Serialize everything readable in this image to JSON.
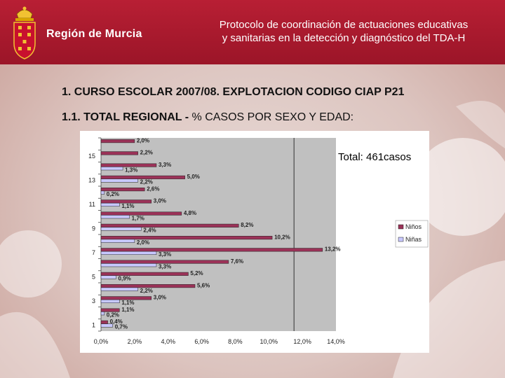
{
  "header": {
    "brand": "Región de Murcia",
    "title_line1": "Protocolo de coordinación de actuaciones educativas",
    "title_line2": "y sanitarias en la detección y diagnóstico del TDA-H"
  },
  "section": {
    "heading1": "1. CURSO ESCOLAR 2007/08. EXPLOTACION CODIGO CIAP P21",
    "heading2_bold": "1.1. TOTAL REGIONAL - ",
    "heading2_rest": "% CASOS POR SEXO Y EDAD:"
  },
  "colors": {
    "header_red": "#b01c30",
    "ninos": "#9b3258",
    "ninas": "#c8c8ff",
    "plot_bg": "#c0c0c0"
  },
  "chart_data": {
    "type": "bar",
    "orientation": "horizontal",
    "annotation": "Total: 461casos",
    "ylabels": [
      "15",
      "13",
      "11",
      "9",
      "7",
      "5",
      "3",
      "1"
    ],
    "xticks": [
      "0,0%",
      "2,0%",
      "4,0%",
      "6,0%",
      "8,0%",
      "10,0%",
      "12,0%",
      "14,0%"
    ],
    "xlim": [
      0,
      14
    ],
    "reference_line_x": 11.5,
    "legend_position": "right",
    "series": [
      {
        "name": "Niños",
        "color": "#9b3258"
      },
      {
        "name": "Niñas",
        "color": "#c8c8ff"
      }
    ],
    "rows": [
      {
        "ninos": 2.0,
        "ninos_label": "2,0%",
        "ninas": null,
        "ninas_label": ""
      },
      {
        "ninos": 2.2,
        "ninos_label": "2,2%",
        "ninas": null,
        "ninas_label": ""
      },
      {
        "ninos": 3.3,
        "ninos_label": "3,3%",
        "ninas": 1.3,
        "ninas_label": "1,3%"
      },
      {
        "ninos": 5.0,
        "ninos_label": "5,0%",
        "ninas": 2.2,
        "ninas_label": "2,2%"
      },
      {
        "ninos": 2.6,
        "ninos_label": "2,6%",
        "ninas": 0.2,
        "ninas_label": "0,2%"
      },
      {
        "ninos": 3.0,
        "ninos_label": "3,0%",
        "ninas": 1.1,
        "ninas_label": "1,1%"
      },
      {
        "ninos": 4.8,
        "ninos_label": "4,8%",
        "ninas": 1.7,
        "ninas_label": "1,7%"
      },
      {
        "ninos": 8.2,
        "ninos_label": "8,2%",
        "ninas": 2.4,
        "ninas_label": "2,4%"
      },
      {
        "ninos": 10.2,
        "ninos_label": "10,2%",
        "ninas": 2.0,
        "ninas_label": "2,0%"
      },
      {
        "ninos": 13.2,
        "ninos_label": "13,2%",
        "ninas": 3.3,
        "ninas_label": "3,3%"
      },
      {
        "ninos": 7.6,
        "ninos_label": "7,6%",
        "ninas": 3.3,
        "ninas_label": "3,3%"
      },
      {
        "ninos": 5.2,
        "ninos_label": "5,2%",
        "ninas": 0.9,
        "ninas_label": "0,9%"
      },
      {
        "ninos": 5.6,
        "ninos_label": "5,6%",
        "ninas": 2.2,
        "ninas_label": "2,2%"
      },
      {
        "ninos": 3.0,
        "ninos_label": "3,0%",
        "ninas": 1.1,
        "ninas_label": "1,1%"
      },
      {
        "ninos": 1.1,
        "ninos_label": "1,1%",
        "ninas": 0.2,
        "ninas_label": "0,2%"
      },
      {
        "ninos": 0.4,
        "ninos_label": "0,4%",
        "ninas": 0.7,
        "ninas_label": "0,7%"
      }
    ]
  }
}
